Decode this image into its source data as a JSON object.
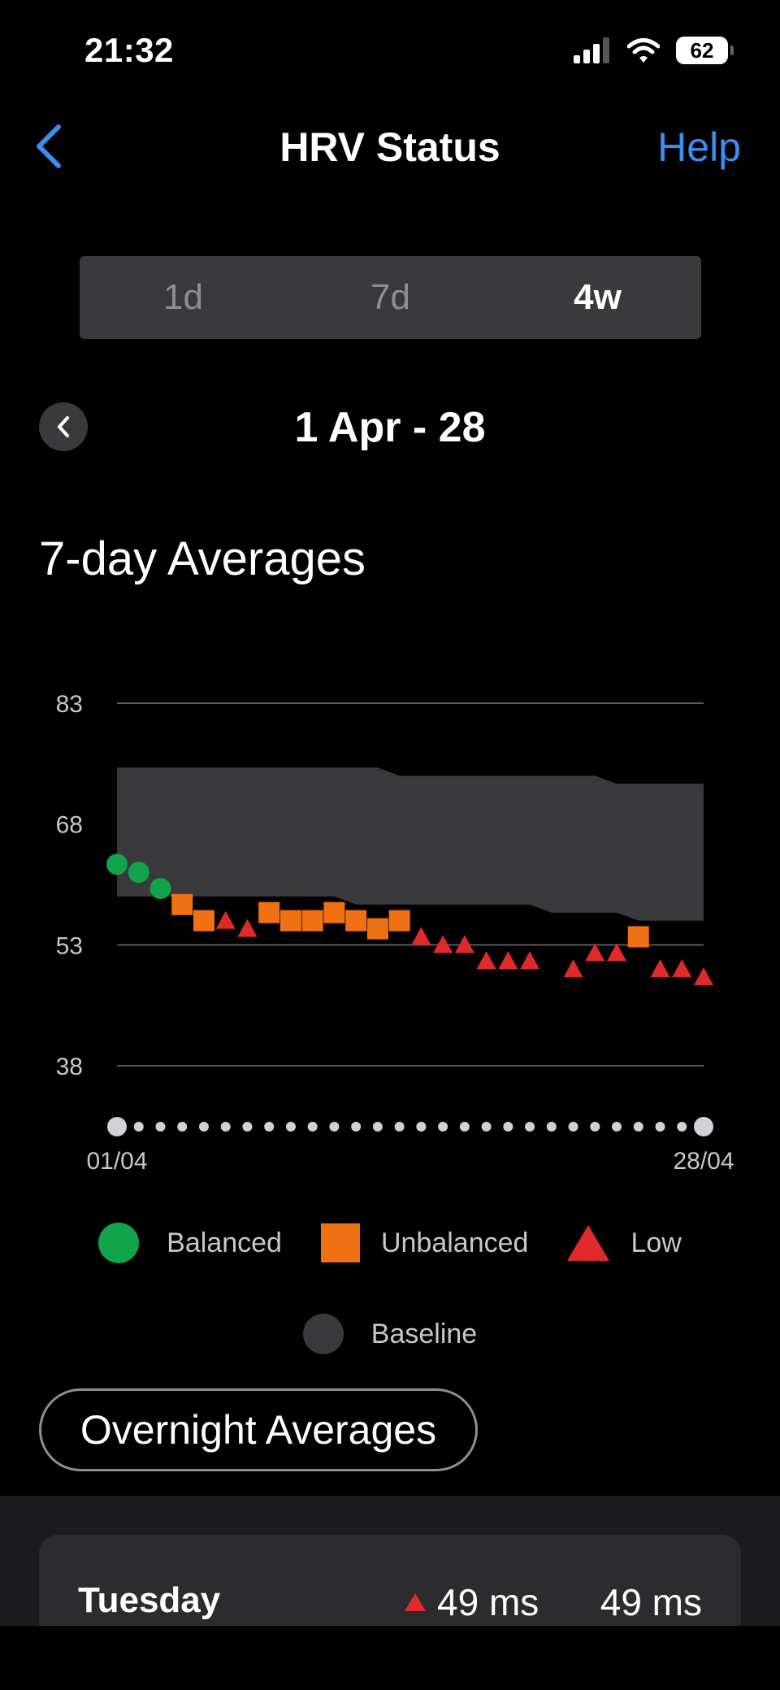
{
  "status_bar": {
    "time": "21:32",
    "battery": "62"
  },
  "nav": {
    "title": "HRV Status",
    "help_label": "Help"
  },
  "tabs": [
    {
      "label": "1d",
      "active": false
    },
    {
      "label": "7d",
      "active": false
    },
    {
      "label": "4w",
      "active": true
    }
  ],
  "range": {
    "label": "1 Apr - 28"
  },
  "section_title": "7-day Averages",
  "chart_data": {
    "type": "scatter",
    "title": "7-day Averages",
    "y_ticks": [
      83,
      68,
      53,
      38
    ],
    "ylim": [
      38,
      83
    ],
    "x_start_label": "01/04",
    "x_end_label": "28/04",
    "x_count": 28,
    "baseline_band": {
      "upper": [
        75,
        75,
        75,
        75,
        75,
        75,
        75,
        75,
        75,
        75,
        75,
        75,
        75,
        74,
        74,
        74,
        74,
        74,
        74,
        74,
        74,
        74,
        74,
        73,
        73,
        73,
        73,
        73
      ],
      "lower": [
        59,
        59,
        59,
        59,
        59,
        59,
        59,
        59,
        59,
        59,
        59,
        58,
        58,
        58,
        58,
        58,
        58,
        58,
        58,
        58,
        57,
        57,
        57,
        57,
        56,
        56,
        56,
        56
      ]
    },
    "series": [
      {
        "name": "Balanced",
        "color": "#11a44a",
        "shape": "circle",
        "points": [
          [
            1,
            63
          ],
          [
            2,
            62
          ],
          [
            3,
            60
          ]
        ]
      },
      {
        "name": "Unbalanced",
        "color": "#f07014",
        "shape": "square",
        "points": [
          [
            4,
            58
          ],
          [
            5,
            56
          ],
          [
            8,
            57
          ],
          [
            9,
            56
          ],
          [
            10,
            56
          ],
          [
            11,
            57
          ],
          [
            12,
            56
          ],
          [
            13,
            55
          ],
          [
            14,
            56
          ],
          [
            25,
            54
          ]
        ]
      },
      {
        "name": "Low",
        "color": "#e02a2a",
        "shape": "triangle",
        "points": [
          [
            6,
            56
          ],
          [
            7,
            55
          ],
          [
            15,
            54
          ],
          [
            16,
            53
          ],
          [
            17,
            53
          ],
          [
            18,
            51
          ],
          [
            19,
            51
          ],
          [
            20,
            51
          ],
          [
            22,
            50
          ],
          [
            23,
            52
          ],
          [
            24,
            52
          ],
          [
            26,
            50
          ],
          [
            27,
            50
          ],
          [
            28,
            49
          ]
        ]
      }
    ]
  },
  "legend": [
    {
      "label": "Balanced",
      "color": "#11a44a"
    },
    {
      "label": "Unbalanced",
      "color": "#f07014"
    },
    {
      "label": "Low",
      "color": "#e02a2a"
    },
    {
      "label": "Baseline",
      "color": "#3a3a3c"
    }
  ],
  "overnight_button": "Overnight Averages",
  "day_row": {
    "day": "Tuesday",
    "value_with_trend": "49 ms",
    "value": "49 ms"
  }
}
